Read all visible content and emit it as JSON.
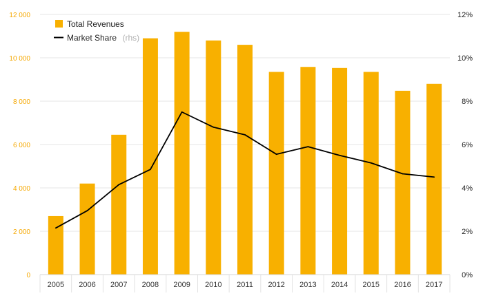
{
  "chart_data": {
    "type": "bar",
    "categories": [
      "2005",
      "2006",
      "2007",
      "2008",
      "2009",
      "2010",
      "2011",
      "2012",
      "2013",
      "2014",
      "2015",
      "2016",
      "2017"
    ],
    "series": [
      {
        "name": "Total Revenues",
        "type": "bar",
        "axis": "left",
        "color": "#f8b000",
        "values": [
          2700,
          4200,
          6450,
          10900,
          11200,
          10800,
          10600,
          9350,
          9580,
          9530,
          9350,
          8480,
          8800
        ]
      },
      {
        "name": "Market Share",
        "name_suffix": "(rhs)",
        "type": "line",
        "axis": "right",
        "color": "#000000",
        "values": [
          2.15,
          2.95,
          4.15,
          4.85,
          7.5,
          6.8,
          6.45,
          5.55,
          5.9,
          5.5,
          5.15,
          4.65,
          4.5
        ]
      }
    ],
    "y_left": {
      "ylim": [
        0,
        12000
      ],
      "ticks": [
        0,
        2000,
        4000,
        6000,
        8000,
        10000,
        12000
      ],
      "tick_labels": [
        "0",
        "2 000",
        "4 000",
        "6 000",
        "8 000",
        "10 000",
        "12 000"
      ],
      "color": "#f5a800"
    },
    "y_right": {
      "ylim": [
        0,
        12
      ],
      "ticks": [
        0,
        2,
        4,
        6,
        8,
        10,
        12
      ],
      "tick_labels": [
        "0%",
        "2%",
        "4%",
        "6%",
        "8%",
        "10%",
        "12%"
      ]
    },
    "grid": true,
    "legend": {
      "placement": "top-left"
    }
  }
}
